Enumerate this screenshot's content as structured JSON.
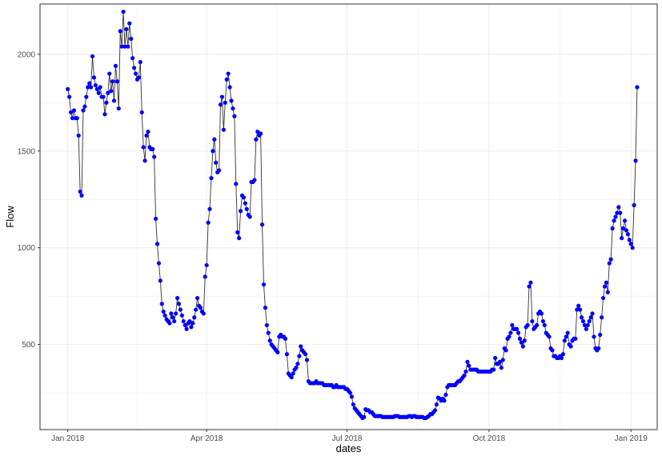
{
  "chart_data": {
    "type": "scatter",
    "xlabel": "dates",
    "ylabel": "Flow",
    "xlim": [
      "2017-12-14",
      "2019-01-18"
    ],
    "ylim": [
      60,
      2260
    ],
    "x_ticks": [
      {
        "date": "2018-01-01",
        "label": "Jan 2018"
      },
      {
        "date": "2018-04-01",
        "label": "Apr 2018"
      },
      {
        "date": "2018-07-01",
        "label": "Jul 2018"
      },
      {
        "date": "2018-10-01",
        "label": "Oct 2018"
      },
      {
        "date": "2019-01-01",
        "label": "Jan 2019"
      }
    ],
    "y_ticks": [
      500,
      1000,
      1500,
      2000
    ],
    "grid": true,
    "line_color": "#333333",
    "point_color": "#0000ff",
    "panel_border_color": "#333333",
    "grid_color": "#ebebeb",
    "series": [
      {
        "start": "2018-01-01",
        "step_days": 1,
        "values": [
          1820,
          1780,
          1700,
          1670,
          1710,
          1670,
          1670,
          1580,
          1290,
          1270,
          1710,
          1730,
          1780,
          1830,
          1850,
          1830,
          1990,
          1880,
          1840,
          1820,
          1800,
          1830,
          1780,
          1780,
          1690,
          1750,
          1800,
          1900,
          1810,
          1860,
          1760,
          1940,
          1860,
          1720,
          2120,
          2040,
          2220,
          2040,
          2130,
          2040,
          2160,
          2080,
          1980,
          1930,
          1900,
          1870,
          1880,
          1960,
          1700,
          1520,
          1450,
          1580,
          1600,
          1520,
          1510,
          1510,
          1470,
          1150,
          1020,
          920,
          830,
          710,
          670,
          650,
          630,
          620,
          610,
          660,
          640,
          620,
          660,
          740,
          710,
          680,
          650,
          620,
          600,
          580,
          610,
          620,
          590,
          610,
          640,
          680,
          740,
          700,
          690,
          670,
          660,
          850,
          910,
          1130,
          1200,
          1360,
          1500,
          1560,
          1440,
          1390,
          1400,
          1740,
          1780,
          1610,
          1750,
          1870,
          1900,
          1830,
          1760,
          1720,
          1680,
          1330,
          1080,
          1050,
          1190,
          1270,
          1260,
          1230,
          1200,
          1170,
          1160,
          1340,
          1340,
          1350,
          1560,
          1600,
          1580,
          1590,
          1120,
          810,
          690,
          600,
          560,
          520,
          500,
          490,
          480,
          470,
          460,
          540,
          550,
          540,
          540,
          530,
          450,
          350,
          340,
          330,
          350,
          370,
          380,
          400,
          440,
          490,
          470,
          460,
          450,
          420,
          310,
          300,
          300,
          300,
          300,
          310,
          300,
          300,
          300,
          300,
          290,
          290,
          290,
          290,
          290,
          290,
          280,
          280,
          290,
          280,
          280,
          280,
          280,
          280,
          270,
          270,
          260,
          250,
          230,
          190,
          170,
          160,
          150,
          140,
          130,
          120,
          125,
          165,
          160,
          160,
          150,
          150,
          140,
          130,
          130,
          130,
          130,
          130,
          125,
          125,
          125,
          125,
          125,
          125,
          125,
          125,
          130,
          130,
          130,
          125,
          125,
          125,
          125,
          125,
          125,
          130,
          130,
          125,
          130,
          130,
          125,
          125,
          125,
          125,
          125,
          120,
          120,
          125,
          130,
          140,
          140,
          150,
          160,
          190,
          225,
          220,
          210,
          220,
          210,
          240,
          280,
          290,
          290,
          290,
          290,
          290,
          300,
          310,
          310,
          320,
          330,
          340,
          360,
          410,
          390,
          370,
          370,
          370,
          370,
          370,
          360,
          360,
          360,
          360,
          360,
          360,
          360,
          360,
          360,
          370,
          370,
          430,
          400,
          400,
          410,
          380,
          420,
          480,
          470,
          530,
          540,
          560,
          600,
          580,
          580,
          580,
          560,
          530,
          510,
          490,
          520,
          590,
          600,
          800,
          820,
          620,
          580,
          590,
          600,
          660,
          670,
          660,
          620,
          600,
          560,
          550,
          540,
          480,
          470,
          440,
          440,
          430,
          430,
          440,
          430,
          450,
          520,
          540,
          560,
          500,
          490,
          520,
          530,
          530,
          680,
          700,
          680,
          640,
          620,
          600,
          580,
          600,
          620,
          640,
          660,
          540,
          480,
          470,
          480,
          550,
          640,
          740,
          800,
          820,
          770,
          920,
          940,
          1100,
          1140,
          1160,
          1180,
          1210,
          1180,
          1050,
          1100,
          1140,
          1090,
          1070,
          1040,
          1020,
          1000,
          1220,
          1450,
          1830
        ]
      }
    ]
  }
}
